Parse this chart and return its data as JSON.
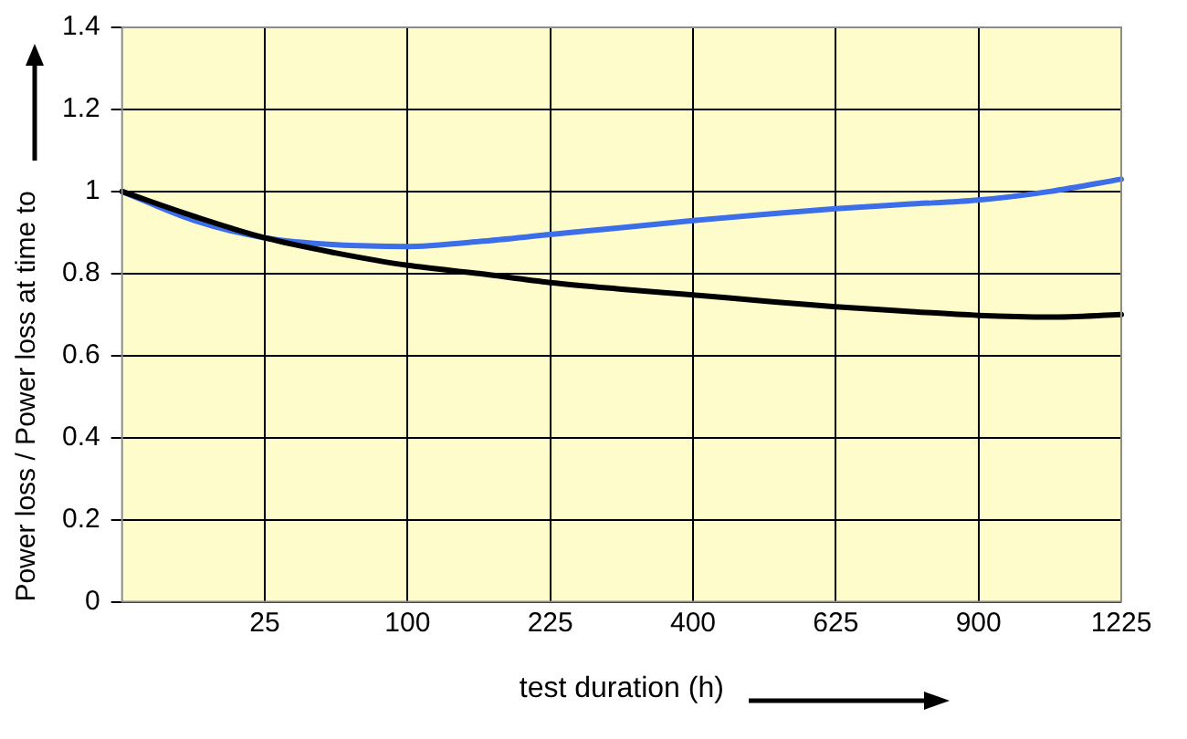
{
  "chart_data": {
    "type": "line",
    "xlabel": "test duration (h)",
    "ylabel": "Power loss / Power loss at time to",
    "categories": [
      null,
      null,
      "25",
      null,
      "100",
      null,
      "225",
      null,
      "400",
      null,
      "625",
      null,
      "900",
      null,
      "1225"
    ],
    "series": [
      {
        "color": "#000000",
        "values": [
          1.0,
          0.94,
          0.887,
          0.85,
          0.82,
          0.8,
          0.778,
          0.762,
          0.748,
          0.733,
          0.719,
          0.708,
          0.698,
          0.694,
          0.7
        ]
      },
      {
        "color": "#3b6ee8",
        "values": [
          1.0,
          0.93,
          0.887,
          0.87,
          0.866,
          0.878,
          0.895,
          0.912,
          0.929,
          0.944,
          0.958,
          0.969,
          0.979,
          1.0,
          1.03
        ]
      }
    ],
    "ylim": [
      0,
      1.4
    ],
    "yticks": [
      0,
      0.2,
      0.4,
      0.6,
      0.8,
      1,
      1.2,
      1.4
    ],
    "grid": true,
    "legend": false,
    "marker": "none",
    "line_style": "solid"
  }
}
